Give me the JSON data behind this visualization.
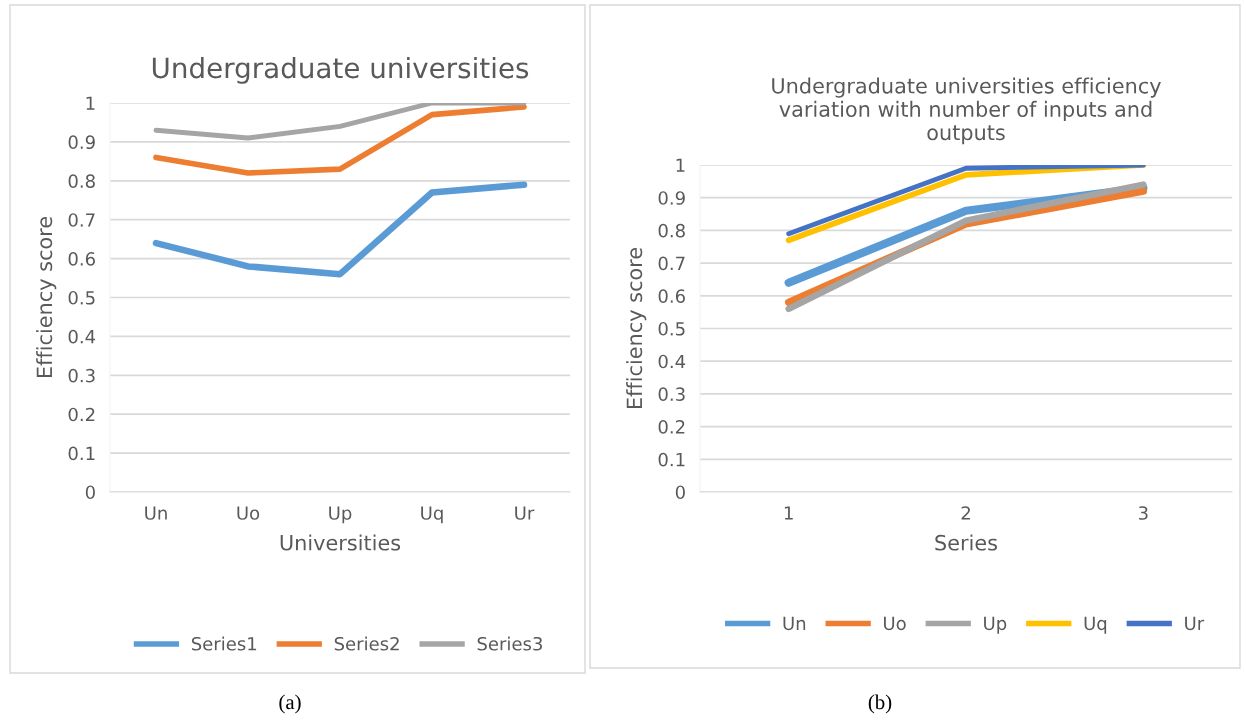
{
  "chart_data": [
    {
      "type": "line",
      "title": "Undergraduate universities",
      "xlabel": "Universities",
      "ylabel": "Efficiency score",
      "categories": [
        "Un",
        "Uo",
        "Up",
        "Uq",
        "Ur"
      ],
      "series": [
        {
          "name": "Series1",
          "color": "#5b9bd5",
          "values": [
            0.64,
            0.58,
            0.56,
            0.77,
            0.79
          ]
        },
        {
          "name": "Series2",
          "color": "#ed7d31",
          "values": [
            0.86,
            0.82,
            0.83,
            0.97,
            0.99
          ]
        },
        {
          "name": "Series3",
          "color": "#a5a5a5",
          "values": [
            0.93,
            0.91,
            0.94,
            1,
            1
          ]
        }
      ],
      "ylim": [
        0,
        1
      ],
      "yticks": [
        0,
        0.1,
        0.2,
        0.3,
        0.4,
        0.5,
        0.6,
        0.7,
        0.8,
        0.9,
        1
      ],
      "grid": "y",
      "legend": "bottom",
      "marker": "none",
      "line_style": "solid",
      "annotations": [
        "(a)"
      ]
    },
    {
      "type": "line",
      "title": "Undergraduate universities efficiency\nvariation with number of inputs and\noutputs",
      "xlabel": "Series",
      "ylabel": "Efficiency score",
      "categories": [
        "1",
        "2",
        "3"
      ],
      "series": [
        {
          "name": "Un",
          "color": "#5b9bd5",
          "values": [
            0.64,
            0.86,
            0.93
          ]
        },
        {
          "name": "Uo",
          "color": "#ed7d31",
          "values": [
            0.58,
            0.82,
            0.92
          ]
        },
        {
          "name": "Up",
          "color": "#a5a5a5",
          "values": [
            0.56,
            0.83,
            0.94
          ]
        },
        {
          "name": "Uq",
          "color": "#ffc000",
          "values": [
            0.77,
            0.97,
            1
          ]
        },
        {
          "name": "Ur",
          "color": "#4472c4",
          "values": [
            0.79,
            0.99,
            1
          ]
        }
      ],
      "ylim": [
        0,
        1
      ],
      "yticks": [
        0,
        0.1,
        0.2,
        0.3,
        0.4,
        0.5,
        0.6,
        0.7,
        0.8,
        0.9,
        1
      ],
      "grid": "y",
      "legend": "bottom",
      "marker": "none",
      "line_style": "solid",
      "annotations": [
        "(b)"
      ]
    }
  ]
}
